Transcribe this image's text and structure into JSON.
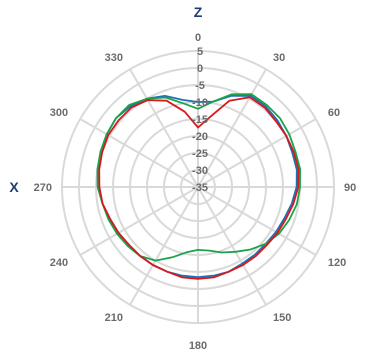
{
  "chart_data": {
    "type": "polar-line",
    "axis_labels": {
      "top": "Z",
      "left": "X"
    },
    "angle_ticks": [
      "0",
      "30",
      "60",
      "90",
      "120",
      "150",
      "180",
      "210",
      "240",
      "270",
      "300",
      "330"
    ],
    "radial_ticks": [
      "5",
      "0",
      "-5",
      "-10",
      "-15",
      "-20",
      "-25",
      "-30",
      "-35"
    ],
    "r_range": [
      -35,
      5
    ],
    "grid": true,
    "theta": [
      0,
      10,
      20,
      30,
      40,
      50,
      60,
      70,
      80,
      90,
      100,
      110,
      120,
      130,
      140,
      150,
      160,
      170,
      180,
      190,
      200,
      210,
      220,
      230,
      240,
      250,
      260,
      270,
      280,
      290,
      300,
      310,
      320,
      330,
      340,
      350,
      360
    ],
    "series": [
      {
        "color": "#1f6fb2",
        "values": [
          -10,
          -9.5,
          -6.5,
          -4,
          -4,
          -4.5,
          -5,
          -5.5,
          -5.5,
          -6,
          -7,
          -8,
          -8.5,
          -9,
          -9,
          -9,
          -8.5,
          -8.5,
          -8.5,
          -8.5,
          -8.5,
          -8.5,
          -8.5,
          -8.5,
          -8,
          -7.5,
          -6.5,
          -5.5,
          -5,
          -4.5,
          -4,
          -3.5,
          -4,
          -5,
          -6.5,
          -9,
          -10
        ]
      },
      {
        "color": "#1aa34a",
        "values": [
          -12,
          -9.5,
          -6,
          -3.5,
          -3.5,
          -3.5,
          -4,
          -4.5,
          -4.5,
          -5,
          -5.5,
          -6.5,
          -7.5,
          -9,
          -11,
          -13,
          -14.5,
          -16,
          -16.5,
          -15.5,
          -13,
          -10,
          -8.5,
          -8,
          -7.5,
          -7,
          -6.5,
          -5.5,
          -5,
          -4.5,
          -4,
          -3.5,
          -3.5,
          -5,
          -7,
          -10,
          -12
        ]
      },
      {
        "color": "#d7191c",
        "values": [
          -17.5,
          -14,
          -8,
          -4.5,
          -4.5,
          -5,
          -5,
          -5,
          -5,
          -5.5,
          -6.5,
          -7.5,
          -8,
          -8.5,
          -8.5,
          -8.5,
          -8.5,
          -8,
          -8,
          -8,
          -8.5,
          -8.5,
          -8.5,
          -8.5,
          -8,
          -7.5,
          -6.5,
          -6,
          -5.5,
          -5,
          -4.5,
          -4.5,
          -4.5,
          -5.5,
          -8,
          -12.5,
          -17.5
        ]
      }
    ]
  }
}
